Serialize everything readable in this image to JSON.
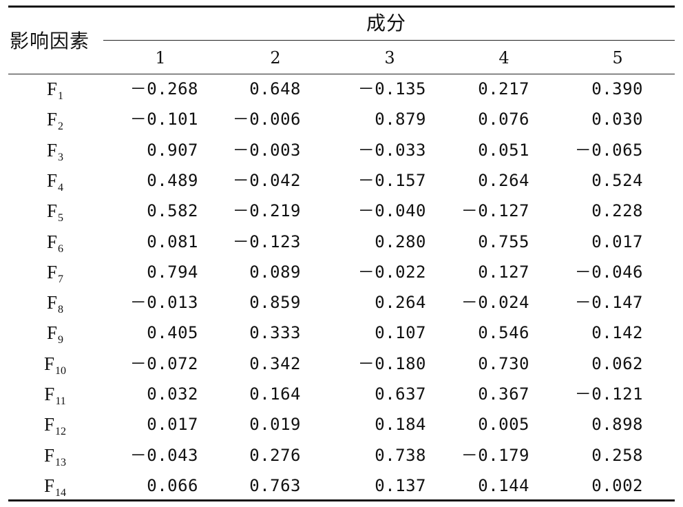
{
  "header": {
    "row_label": "影响因素",
    "group_label": "成分",
    "columns": [
      "1",
      "2",
      "3",
      "4",
      "5"
    ]
  },
  "rows": [
    {
      "base": "F",
      "sub": "1",
      "values": [
        "－0.268",
        "0.648",
        "－0.135",
        "0.217",
        "0.390"
      ]
    },
    {
      "base": "F",
      "sub": "2",
      "values": [
        "－0.101",
        "－0.006",
        "0.879",
        "0.076",
        "0.030"
      ]
    },
    {
      "base": "F",
      "sub": "3",
      "values": [
        "0.907",
        "－0.003",
        "－0.033",
        "0.051",
        "－0.065"
      ]
    },
    {
      "base": "F",
      "sub": "4",
      "values": [
        "0.489",
        "－0.042",
        "－0.157",
        "0.264",
        "0.524"
      ]
    },
    {
      "base": "F",
      "sub": "5",
      "values": [
        "0.582",
        "－0.219",
        "－0.040",
        "－0.127",
        "0.228"
      ]
    },
    {
      "base": "F",
      "sub": "6",
      "values": [
        "0.081",
        "－0.123",
        "0.280",
        "0.755",
        "0.017"
      ]
    },
    {
      "base": "F",
      "sub": "7",
      "values": [
        "0.794",
        "0.089",
        "－0.022",
        "0.127",
        "－0.046"
      ]
    },
    {
      "base": "F",
      "sub": "8",
      "values": [
        "－0.013",
        "0.859",
        "0.264",
        "－0.024",
        "－0.147"
      ]
    },
    {
      "base": "F",
      "sub": "9",
      "values": [
        "0.405",
        "0.333",
        "0.107",
        "0.546",
        "0.142"
      ]
    },
    {
      "base": "F",
      "sub": "10",
      "values": [
        "－0.072",
        "0.342",
        "－0.180",
        "0.730",
        "0.062"
      ]
    },
    {
      "base": "F",
      "sub": "11",
      "values": [
        "0.032",
        "0.164",
        "0.637",
        "0.367",
        "－0.121"
      ]
    },
    {
      "base": "F",
      "sub": "12",
      "values": [
        "0.017",
        "0.019",
        "0.184",
        "0.005",
        "0.898"
      ]
    },
    {
      "base": "F",
      "sub": "13",
      "values": [
        "－0.043",
        "0.276",
        "0.738",
        "－0.179",
        "0.258"
      ]
    },
    {
      "base": "F",
      "sub": "14",
      "values": [
        "0.066",
        "0.763",
        "0.137",
        "0.144",
        "0.002"
      ]
    }
  ]
}
